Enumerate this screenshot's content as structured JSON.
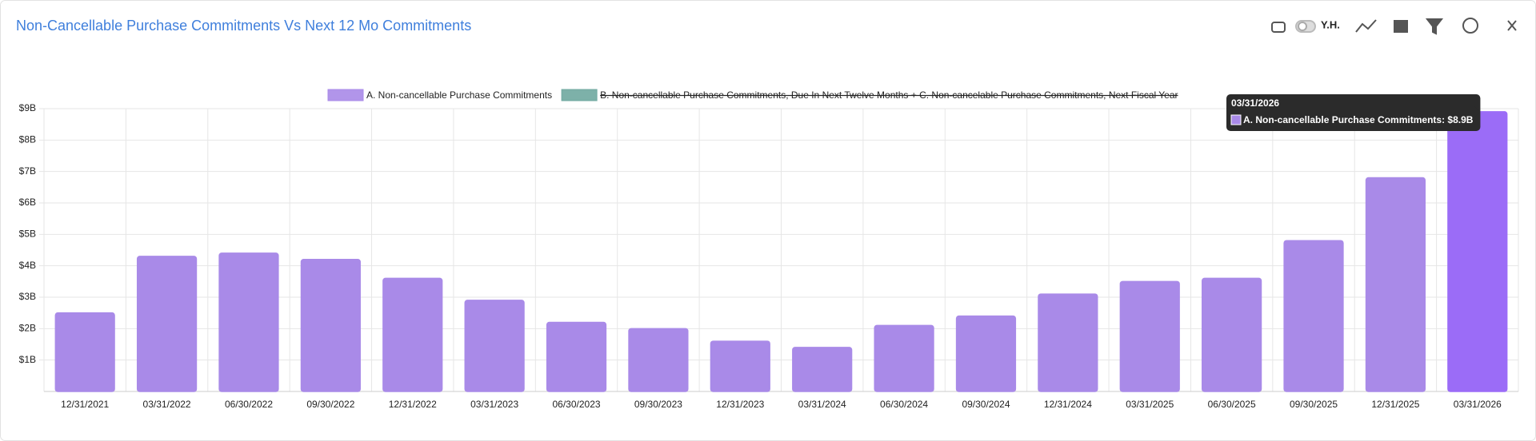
{
  "header": {
    "title": "Non-Cancellable Purchase Commitments Vs Next 12 Mo Commitments",
    "toggle_label": "Y.H."
  },
  "chart_data": {
    "type": "bar",
    "categories": [
      "12/31/2021",
      "03/31/2022",
      "06/30/2022",
      "09/30/2022",
      "12/31/2022",
      "03/31/2023",
      "06/30/2023",
      "09/30/2023",
      "12/31/2023",
      "03/31/2024",
      "06/30/2024",
      "09/30/2024",
      "12/31/2024",
      "03/31/2025",
      "06/30/2025",
      "09/30/2025",
      "12/31/2025",
      "03/31/2026"
    ],
    "series": [
      {
        "name": "A. Non-cancellable Purchase Commitments",
        "color": "#a98ae8",
        "values": [
          2.5,
          4.3,
          4.4,
          4.2,
          3.6,
          2.9,
          2.2,
          2.0,
          1.6,
          1.4,
          2.1,
          2.4,
          3.1,
          3.5,
          3.6,
          4.8,
          6.8,
          8.9
        ]
      }
    ],
    "legend": [
      {
        "name": "A. Non-cancellable Purchase Commitments",
        "color": "#a98ae8",
        "hidden": false
      },
      {
        "name": "B. Non-cancellable Purchase Commitments, Due In Next Twelve Months + C. Non-cancelable Purchase Commitments, Next Fiscal Year",
        "color": "#6fa8a0",
        "hidden": true
      }
    ],
    "ylim": [
      0,
      9
    ],
    "yticks": [
      {
        "value": 1,
        "label": "$1B"
      },
      {
        "value": 2,
        "label": "$2B"
      },
      {
        "value": 3,
        "label": "$3B"
      },
      {
        "value": 4,
        "label": "$4B"
      },
      {
        "value": 5,
        "label": "$5B"
      },
      {
        "value": 6,
        "label": "$6B"
      },
      {
        "value": 7,
        "label": "$7B"
      },
      {
        "value": 8,
        "label": "$8B"
      },
      {
        "value": 9,
        "label": "$9B"
      }
    ],
    "grid": true,
    "highlight_color": "#9b6cf7",
    "tooltip": {
      "index": 17,
      "title": "03/31/2026",
      "text": "A. Non-cancellable Purchase Commitments: $8.9B"
    }
  }
}
